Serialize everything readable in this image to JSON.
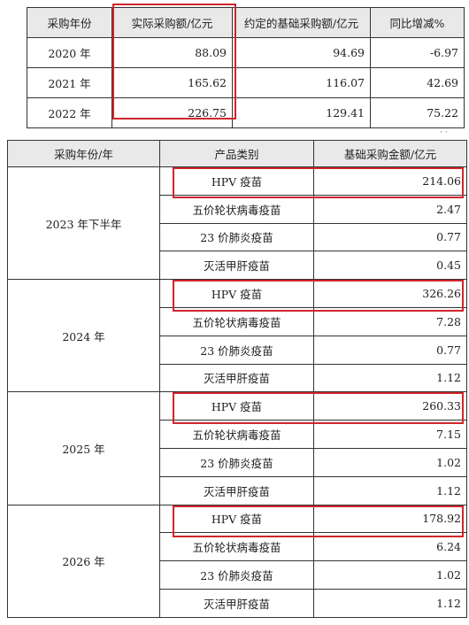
{
  "table1": {
    "headers": [
      "采购年份",
      "实际采购额/亿元",
      "约定的基础采购额/亿元",
      "同比增减%"
    ],
    "rows": [
      [
        "2020 年",
        "88.09",
        "94.69",
        "-6.97"
      ],
      [
        "2021 年",
        "165.62",
        "116.07",
        "42.69"
      ],
      [
        "2022 年",
        "226.75",
        "129.41",
        "75.22"
      ]
    ]
  },
  "table2": {
    "headers": [
      "采购年份/年",
      "产品类别",
      "基础采购金额/亿元"
    ],
    "groups": [
      {
        "year": "2023 年下半年",
        "items": [
          [
            "HPV 疫苗",
            "214.06"
          ],
          [
            "五价轮状病毒疫苗",
            "2.47"
          ],
          [
            "23 价肺炎疫苗",
            "0.77"
          ],
          [
            "灭活甲肝疫苗",
            "0.45"
          ]
        ]
      },
      {
        "year": "2024 年",
        "items": [
          [
            "HPV 疫苗",
            "326.26"
          ],
          [
            "五价轮状病毒疫苗",
            "7.28"
          ],
          [
            "23 价肺炎疫苗",
            "0.77"
          ],
          [
            "灭活甲肝疫苗",
            "1.12"
          ]
        ]
      },
      {
        "year": "2025 年",
        "items": [
          [
            "HPV 疫苗",
            "260.33"
          ],
          [
            "五价轮状病毒疫苗",
            "7.15"
          ],
          [
            "23 价肺炎疫苗",
            "1.02"
          ],
          [
            "灭活甲肝疫苗",
            "1.12"
          ]
        ]
      },
      {
        "year": "2026 年",
        "items": [
          [
            "HPV 疫苗",
            "178.92"
          ],
          [
            "五价轮状病毒疫苗",
            "6.24"
          ],
          [
            "23 价肺炎疫苗",
            "1.02"
          ],
          [
            "灭活甲肝疫苗",
            "1.12"
          ]
        ]
      }
    ]
  },
  "highlight_color": "#d0262c"
}
